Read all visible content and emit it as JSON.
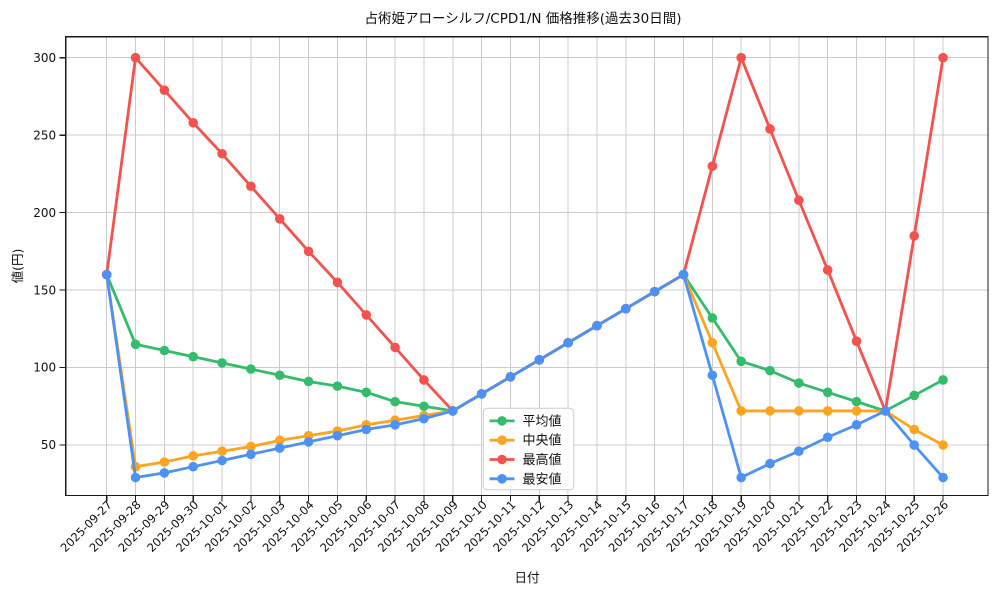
{
  "figure": {
    "background": "#ffffff"
  },
  "chart_data": {
    "type": "line",
    "title": "占術姫アローシルフ/CPD1/N 価格推移(過去30日間)",
    "xlabel": "日付",
    "ylabel": "値(円)",
    "grid": true,
    "legend_position": "inside lower-center-left",
    "ylim": [
      21,
      311
    ],
    "yticks": [
      50,
      100,
      150,
      200,
      250,
      300
    ],
    "x": [
      "2025-09-27",
      "2025-09-28",
      "2025-09-29",
      "2025-09-30",
      "2025-10-01",
      "2025-10-02",
      "2025-10-03",
      "2025-10-04",
      "2025-10-05",
      "2025-10-06",
      "2025-10-07",
      "2025-10-08",
      "2025-10-09",
      "2025-10-10",
      "2025-10-11",
      "2025-10-12",
      "2025-10-13",
      "2025-10-14",
      "2025-10-15",
      "2025-10-16",
      "2025-10-17",
      "2025-10-18",
      "2025-10-19",
      "2025-10-20",
      "2025-10-21",
      "2025-10-22",
      "2025-10-23",
      "2025-10-24",
      "2025-10-25",
      "2025-10-26"
    ],
    "series": [
      {
        "name": "平均値",
        "key": "average",
        "color": "#34bb6b",
        "values": [
          160,
          115,
          111,
          107,
          103,
          99,
          95,
          91,
          88,
          84,
          78,
          75,
          72,
          83,
          94,
          105,
          116,
          127,
          138,
          149,
          160,
          132,
          104,
          98,
          90,
          84,
          78,
          72,
          82,
          92
        ]
      },
      {
        "name": "中央値",
        "key": "median",
        "color": "#ffa420",
        "values": [
          160,
          36,
          39,
          43,
          46,
          49,
          53,
          56,
          59,
          63,
          66,
          69,
          72,
          83,
          94,
          105,
          116,
          127,
          138,
          149,
          160,
          116,
          72,
          72,
          72,
          72,
          72,
          72,
          60,
          50
        ]
      },
      {
        "name": "最高値",
        "key": "max",
        "color": "#f4524e",
        "values": [
          160,
          300,
          279,
          258,
          238,
          217,
          196,
          175,
          155,
          134,
          113,
          92,
          72,
          83,
          94,
          105,
          116,
          127,
          138,
          149,
          160,
          230,
          300,
          254,
          208,
          163,
          117,
          72,
          185,
          300
        ]
      },
      {
        "name": "最安値",
        "key": "min",
        "color": "#4e91f5",
        "values": [
          160,
          29,
          32,
          36,
          40,
          44,
          48,
          52,
          56,
          60,
          63,
          67,
          72,
          83,
          94,
          105,
          116,
          127,
          138,
          149,
          160,
          95,
          29,
          38,
          46,
          55,
          63,
          72,
          50,
          29
        ]
      }
    ],
    "style": {
      "grid_color": "#cccccc",
      "spine_color": "#1a1a1a",
      "text_color": "#111111",
      "legend_border_color": "#cccccc",
      "legend_bg": "#ffffff"
    }
  }
}
